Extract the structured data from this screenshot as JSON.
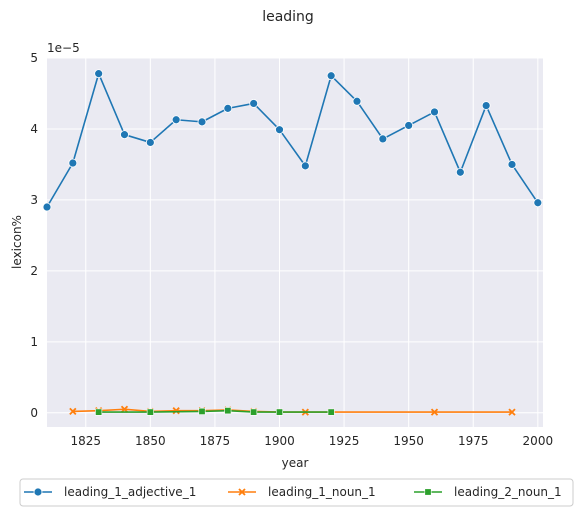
{
  "chart_data": {
    "type": "line",
    "title": "leading",
    "xlabel": "year",
    "ylabel": "lexicon%",
    "y_scale_label": "1e−5",
    "xlim": [
      1810,
      2002
    ],
    "ylim": [
      -2e-06,
      5e-05
    ],
    "x_ticks": [
      1825,
      1850,
      1875,
      1900,
      1925,
      1950,
      1975,
      2000
    ],
    "x_tick_labels": [
      "1825",
      "1850",
      "1875",
      "1900",
      "1925",
      "1950",
      "1975",
      "2000"
    ],
    "y_ticks": [
      0,
      1e-05,
      2e-05,
      3e-05,
      4e-05,
      5e-05
    ],
    "y_tick_labels": [
      "0",
      "1",
      "2",
      "3",
      "4",
      "5"
    ],
    "grid": true,
    "legend_position": "bottom-center",
    "series": [
      {
        "name": "leading_1_adjective_1",
        "color": "#1f77b4",
        "marker": "circle",
        "x": [
          1810,
          1820,
          1830,
          1840,
          1850,
          1860,
          1870,
          1880,
          1890,
          1900,
          1910,
          1920,
          1930,
          1940,
          1950,
          1960,
          1970,
          1980,
          1990,
          2000
        ],
        "values": [
          2.9e-05,
          3.52e-05,
          4.78e-05,
          3.92e-05,
          3.81e-05,
          4.13e-05,
          4.1e-05,
          4.29e-05,
          4.36e-05,
          3.99e-05,
          3.48e-05,
          4.75e-05,
          4.39e-05,
          3.86e-05,
          4.05e-05,
          4.24e-05,
          3.39e-05,
          4.33e-05,
          3.5e-05,
          2.96e-05
        ]
      },
      {
        "name": "leading_1_noun_1",
        "color": "#ff7f0e",
        "marker": "x",
        "x": [
          1820,
          1830,
          1840,
          1850,
          1860,
          1870,
          1880,
          1890,
          1900,
          1910,
          1920,
          1960,
          1990
        ],
        "values": [
          2e-07,
          3e-07,
          5e-07,
          2e-07,
          3e-07,
          3e-07,
          4e-07,
          2e-07,
          1e-07,
          1e-07,
          1e-07,
          1e-07,
          1e-07
        ]
      },
      {
        "name": "leading_2_noun_1",
        "color": "#2ca02c",
        "marker": "square",
        "x": [
          1830,
          1850,
          1870,
          1880,
          1890,
          1900,
          1920
        ],
        "values": [
          1e-07,
          1e-07,
          2e-07,
          3e-07,
          1e-07,
          1e-07,
          1e-07
        ]
      }
    ]
  }
}
